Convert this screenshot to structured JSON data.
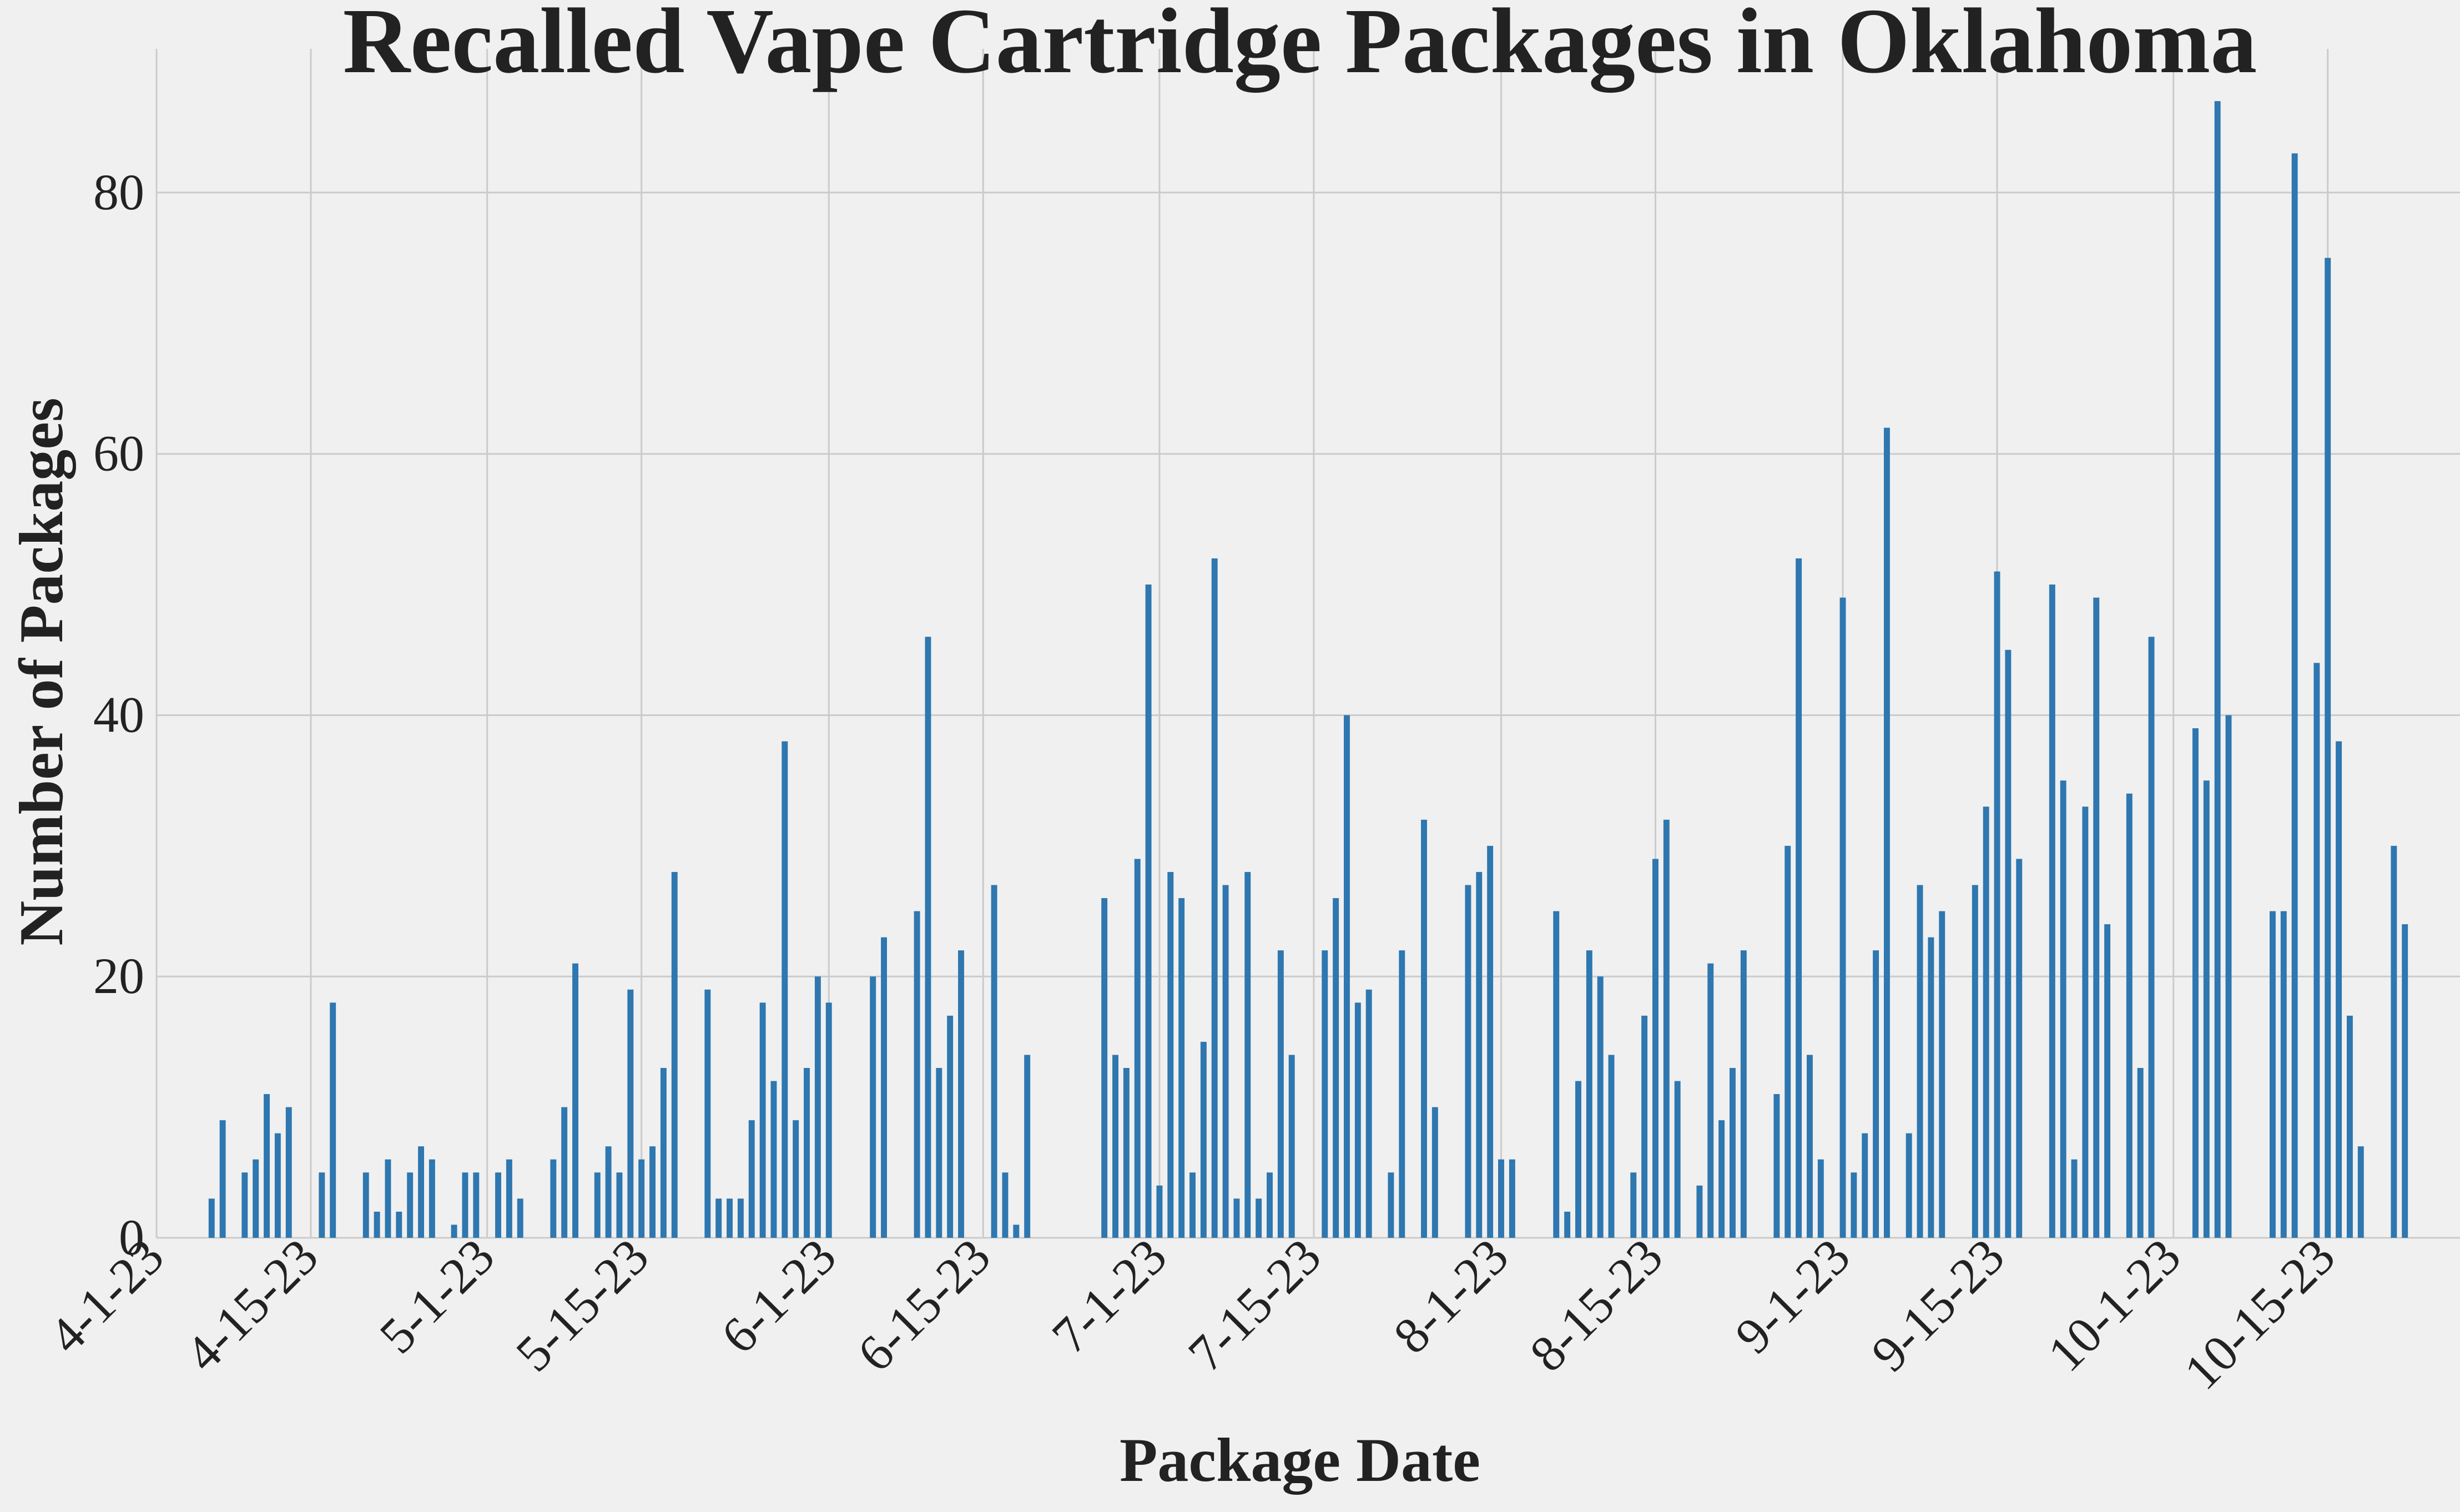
{
  "chart_data": {
    "type": "bar",
    "title": "Recalled Vape Cartridge Packages in Oklahoma",
    "xlabel": "Package Date",
    "ylabel": "Number of Packages",
    "ylim": [
      0,
      91
    ],
    "grid": true,
    "color": "#2e77b0",
    "background": "#f0f0f0",
    "x_start": "2023-04-01",
    "x_end": "2023-10-27",
    "yticks": [
      0,
      20,
      40,
      60,
      80
    ],
    "xticks": [
      {
        "label": "4-1-23",
        "date": "2023-04-01"
      },
      {
        "label": "4-15-23",
        "date": "2023-04-15"
      },
      {
        "label": "5-1-23",
        "date": "2023-05-01"
      },
      {
        "label": "5-15-23",
        "date": "2023-05-15"
      },
      {
        "label": "6-1-23",
        "date": "2023-06-01"
      },
      {
        "label": "6-15-23",
        "date": "2023-06-15"
      },
      {
        "label": "7-1-23",
        "date": "2023-07-01"
      },
      {
        "label": "7-15-23",
        "date": "2023-07-15"
      },
      {
        "label": "8-1-23",
        "date": "2023-08-01"
      },
      {
        "label": "8-15-23",
        "date": "2023-08-15"
      },
      {
        "label": "9-1-23",
        "date": "2023-09-01"
      },
      {
        "label": "9-15-23",
        "date": "2023-09-15"
      },
      {
        "label": "10-1-23",
        "date": "2023-10-01"
      },
      {
        "label": "10-15-23",
        "date": "2023-10-15"
      }
    ],
    "x": [
      "2023-04-06",
      "2023-04-07",
      "2023-04-09",
      "2023-04-10",
      "2023-04-11",
      "2023-04-12",
      "2023-04-13",
      "2023-04-16",
      "2023-04-17",
      "2023-04-20",
      "2023-04-21",
      "2023-04-22",
      "2023-04-23",
      "2023-04-24",
      "2023-04-25",
      "2023-04-26",
      "2023-04-28",
      "2023-04-29",
      "2023-04-30",
      "2023-05-02",
      "2023-05-03",
      "2023-05-04",
      "2023-05-07",
      "2023-05-08",
      "2023-05-09",
      "2023-05-11",
      "2023-05-12",
      "2023-05-13",
      "2023-05-14",
      "2023-05-15",
      "2023-05-16",
      "2023-05-17",
      "2023-05-18",
      "2023-05-21",
      "2023-05-22",
      "2023-05-23",
      "2023-05-24",
      "2023-05-25",
      "2023-05-26",
      "2023-05-27",
      "2023-05-28",
      "2023-05-29",
      "2023-05-30",
      "2023-05-31",
      "2023-06-01",
      "2023-06-05",
      "2023-06-06",
      "2023-06-09",
      "2023-06-10",
      "2023-06-11",
      "2023-06-12",
      "2023-06-13",
      "2023-06-16",
      "2023-06-17",
      "2023-06-18",
      "2023-06-19",
      "2023-06-26",
      "2023-06-27",
      "2023-06-28",
      "2023-06-29",
      "2023-06-30",
      "2023-07-01",
      "2023-07-02",
      "2023-07-03",
      "2023-07-04",
      "2023-07-05",
      "2023-07-06",
      "2023-07-07",
      "2023-07-08",
      "2023-07-09",
      "2023-07-10",
      "2023-07-11",
      "2023-07-12",
      "2023-07-13",
      "2023-07-16",
      "2023-07-17",
      "2023-07-18",
      "2023-07-19",
      "2023-07-20",
      "2023-07-22",
      "2023-07-23",
      "2023-07-25",
      "2023-07-26",
      "2023-07-29",
      "2023-07-30",
      "2023-07-31",
      "2023-08-01",
      "2023-08-02",
      "2023-08-06",
      "2023-08-07",
      "2023-08-08",
      "2023-08-09",
      "2023-08-10",
      "2023-08-11",
      "2023-08-13",
      "2023-08-14",
      "2023-08-15",
      "2023-08-16",
      "2023-08-17",
      "2023-08-19",
      "2023-08-20",
      "2023-08-21",
      "2023-08-22",
      "2023-08-23",
      "2023-08-26",
      "2023-08-27",
      "2023-08-28",
      "2023-08-29",
      "2023-08-30",
      "2023-09-01",
      "2023-09-02",
      "2023-09-03",
      "2023-09-04",
      "2023-09-05",
      "2023-09-07",
      "2023-09-08",
      "2023-09-09",
      "2023-09-10",
      "2023-09-13",
      "2023-09-14",
      "2023-09-15",
      "2023-09-16",
      "2023-09-17",
      "2023-09-20",
      "2023-09-21",
      "2023-09-22",
      "2023-09-23",
      "2023-09-24",
      "2023-09-25",
      "2023-09-27",
      "2023-09-28",
      "2023-09-29",
      "2023-10-03",
      "2023-10-04",
      "2023-10-05",
      "2023-10-06",
      "2023-10-10",
      "2023-10-11",
      "2023-10-12",
      "2023-10-14",
      "2023-10-15",
      "2023-10-16",
      "2023-10-17",
      "2023-10-18",
      "2023-10-21",
      "2023-10-22"
    ],
    "values": [
      3,
      9,
      5,
      6,
      11,
      8,
      10,
      5,
      18,
      5,
      2,
      6,
      2,
      5,
      7,
      6,
      1,
      5,
      5,
      5,
      6,
      3,
      6,
      10,
      21,
      5,
      7,
      5,
      19,
      6,
      7,
      13,
      28,
      19,
      3,
      3,
      3,
      9,
      18,
      12,
      38,
      9,
      13,
      20,
      18,
      20,
      23,
      25,
      46,
      13,
      17,
      22,
      27,
      5,
      1,
      14,
      26,
      14,
      13,
      29,
      50,
      4,
      28,
      26,
      5,
      15,
      52,
      27,
      3,
      28,
      3,
      5,
      22,
      14,
      22,
      26,
      40,
      18,
      19,
      5,
      22,
      32,
      10,
      27,
      28,
      30,
      6,
      6,
      25,
      2,
      12,
      22,
      20,
      14,
      5,
      17,
      29,
      32,
      12,
      4,
      21,
      9,
      13,
      22,
      11,
      30,
      52,
      14,
      6,
      49,
      5,
      8,
      22,
      62,
      8,
      27,
      23,
      25,
      27,
      33,
      51,
      45,
      29,
      50,
      35,
      6,
      33,
      49,
      24,
      34,
      13,
      46,
      39,
      35,
      87,
      40,
      25,
      25,
      83,
      44,
      75,
      38,
      17,
      7,
      30,
      24
    ]
  }
}
